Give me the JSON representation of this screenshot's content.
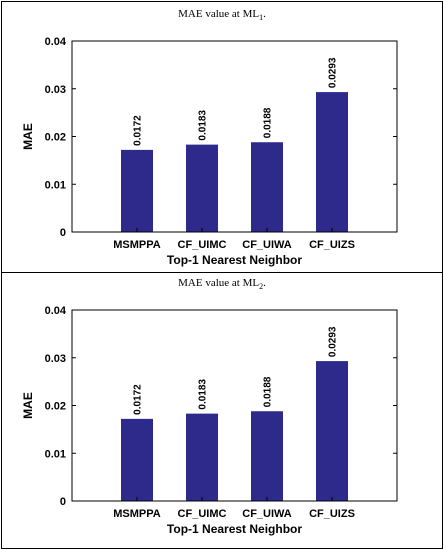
{
  "charts_meta": [
    {
      "caption_main": "MAE value at ML",
      "caption_sub": "1",
      "caption_end": "."
    },
    {
      "caption_main": "MAE value at ML",
      "caption_sub": "2",
      "caption_end": "."
    }
  ],
  "chart_data": [
    {
      "type": "bar",
      "categories": [
        "MSMPPA",
        "CF_UIMC",
        "CF_UIWA",
        "CF_UIZS"
      ],
      "values": [
        0.0172,
        0.0183,
        0.0188,
        0.0293
      ],
      "value_labels": [
        "0.0172",
        "0.0183",
        "0.0188",
        "0.0293"
      ],
      "title": "",
      "xlabel": "Top-1 Nearest Neighbor",
      "ylabel": "MAE",
      "ylim": [
        0,
        0.04
      ],
      "yticks": [
        0,
        0.01,
        0.02,
        0.03,
        0.04
      ],
      "ytick_labels": [
        "0",
        "0.01",
        "0.02",
        "0.03",
        "0.04"
      ],
      "bar_color": "#2e2a8c",
      "grid": false
    },
    {
      "type": "bar",
      "categories": [
        "MSMPPA",
        "CF_UIMC",
        "CF_UIWA",
        "CF_UIZS"
      ],
      "values": [
        0.0172,
        0.0183,
        0.0188,
        0.0293
      ],
      "value_labels": [
        "0.0172",
        "0.0183",
        "0.0188",
        "0.0293"
      ],
      "title": "",
      "xlabel": "Top-1 Nearest Neighbor",
      "ylabel": "MAE",
      "ylim": [
        0,
        0.04
      ],
      "yticks": [
        0,
        0.01,
        0.02,
        0.03,
        0.04
      ],
      "ytick_labels": [
        "0",
        "0.01",
        "0.02",
        "0.03",
        "0.04"
      ],
      "bar_color": "#2e2a8c",
      "grid": false
    }
  ]
}
